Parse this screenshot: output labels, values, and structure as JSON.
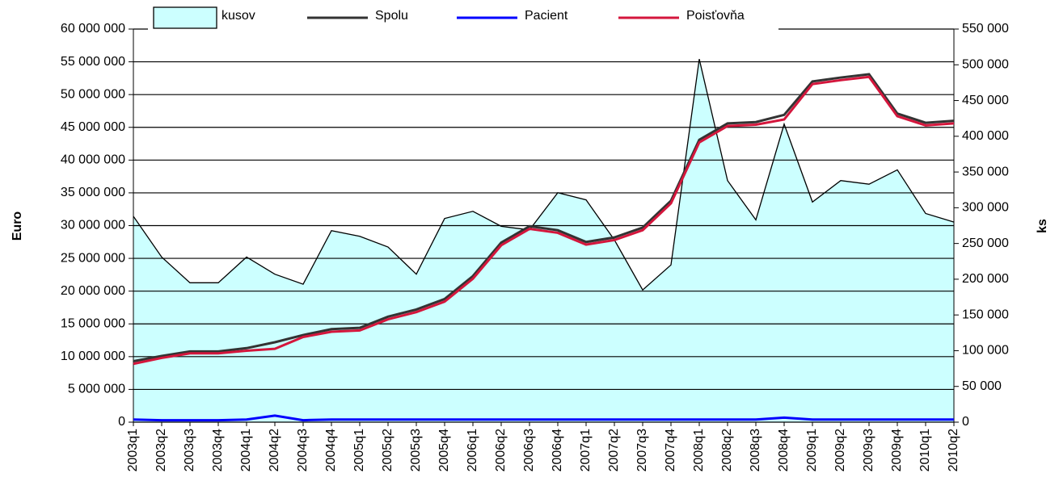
{
  "chart_data": {
    "type": "line",
    "categories": [
      "2003q1",
      "2003q2",
      "2003q3",
      "2003q4",
      "2004q1",
      "2004q2",
      "2004q3",
      "2004q4",
      "2005q1",
      "2005q2",
      "2005q3",
      "2005q4",
      "2006q1",
      "2006q2",
      "2006q3",
      "2006q4",
      "2007q1",
      "2007q2",
      "2007q3",
      "2007q4",
      "2008q1",
      "2008q2",
      "2008q3",
      "2008q4",
      "2009q1",
      "2009q2",
      "2009q3",
      "2009q4",
      "2010q1",
      "2010q2"
    ],
    "series": [
      {
        "name": "kusov",
        "type": "area",
        "axis": "y2",
        "color": "#ccffff",
        "values": [
          288000,
          231000,
          195000,
          195000,
          231000,
          207000,
          193000,
          268000,
          260000,
          245000,
          207000,
          285000,
          295000,
          274000,
          269000,
          321000,
          311000,
          255000,
          185000,
          220000,
          508000,
          338000,
          283000,
          417000,
          308000,
          338000,
          333000,
          353000,
          292000,
          280000
        ]
      },
      {
        "name": "Spolu",
        "color": "#333333",
        "values": [
          9300000,
          10100000,
          10800000,
          10800000,
          11300000,
          12200000,
          13300000,
          14200000,
          14400000,
          16100000,
          17200000,
          18800000,
          22300000,
          27400000,
          29900000,
          29300000,
          27500000,
          28200000,
          29700000,
          33800000,
          43100000,
          45600000,
          45800000,
          46900000,
          52000000,
          52600000,
          53100000,
          47100000,
          45700000,
          46000000
        ]
      },
      {
        "name": "Pacient",
        "color": "#0000ff",
        "values": [
          400000,
          300000,
          300000,
          300000,
          400000,
          1000000,
          300000,
          400000,
          400000,
          400000,
          400000,
          400000,
          400000,
          400000,
          400000,
          400000,
          400000,
          400000,
          400000,
          400000,
          400000,
          400000,
          400000,
          700000,
          400000,
          400000,
          400000,
          400000,
          400000,
          400000
        ]
      },
      {
        "name": "Poisťovňa",
        "color": "#d4163c",
        "values": [
          8900000,
          9800000,
          10500000,
          10500000,
          10900000,
          11200000,
          13000000,
          13800000,
          14000000,
          15700000,
          16800000,
          18400000,
          21900000,
          27000000,
          29500000,
          28900000,
          27100000,
          27800000,
          29300000,
          33400000,
          42700000,
          45200000,
          45400000,
          46200000,
          51600000,
          52200000,
          52700000,
          46700000,
          45300000,
          45600000
        ]
      }
    ],
    "ylabel": "Euro",
    "y2label": "ks",
    "ylim": [
      0,
      60000000
    ],
    "yticks": [
      0,
      {
        "value": 5000000,
        "label": "5 000 000"
      },
      {
        "value": 10000000,
        "label": "10 000 000"
      },
      {
        "value": 15000000,
        "label": "15 000 000"
      },
      {
        "value": 20000000,
        "label": "20 000 000"
      },
      {
        "value": 25000000,
        "label": "25 000 000"
      },
      {
        "value": 30000000,
        "label": "30 000 000"
      },
      {
        "value": 35000000,
        "label": "35 000 000"
      },
      {
        "value": 40000000,
        "label": "40 000 000"
      },
      {
        "value": 45000000,
        "label": "45 000 000"
      },
      {
        "value": 50000000,
        "label": "50 000 000"
      },
      {
        "value": 55000000,
        "label": "55 000 000"
      },
      {
        "value": 60000000,
        "label": "60 000 000"
      }
    ],
    "y2lim": [
      0,
      550000
    ],
    "y2ticks": [
      0,
      {
        "value": 50000,
        "label": "50 000"
      },
      {
        "value": 100000,
        "label": "100 000"
      },
      {
        "value": 150000,
        "label": "150 000"
      },
      {
        "value": 200000,
        "label": "200 000"
      },
      {
        "value": 250000,
        "label": "250 000"
      },
      {
        "value": 300000,
        "label": "300 000"
      },
      {
        "value": 350000,
        "label": "350 000"
      },
      {
        "value": 400000,
        "label": "400 000"
      },
      {
        "value": 450000,
        "label": "450 000"
      },
      {
        "value": 500000,
        "label": "500 000"
      },
      {
        "value": 550000,
        "label": "550 000"
      }
    ],
    "grid": true,
    "legend": "top"
  }
}
